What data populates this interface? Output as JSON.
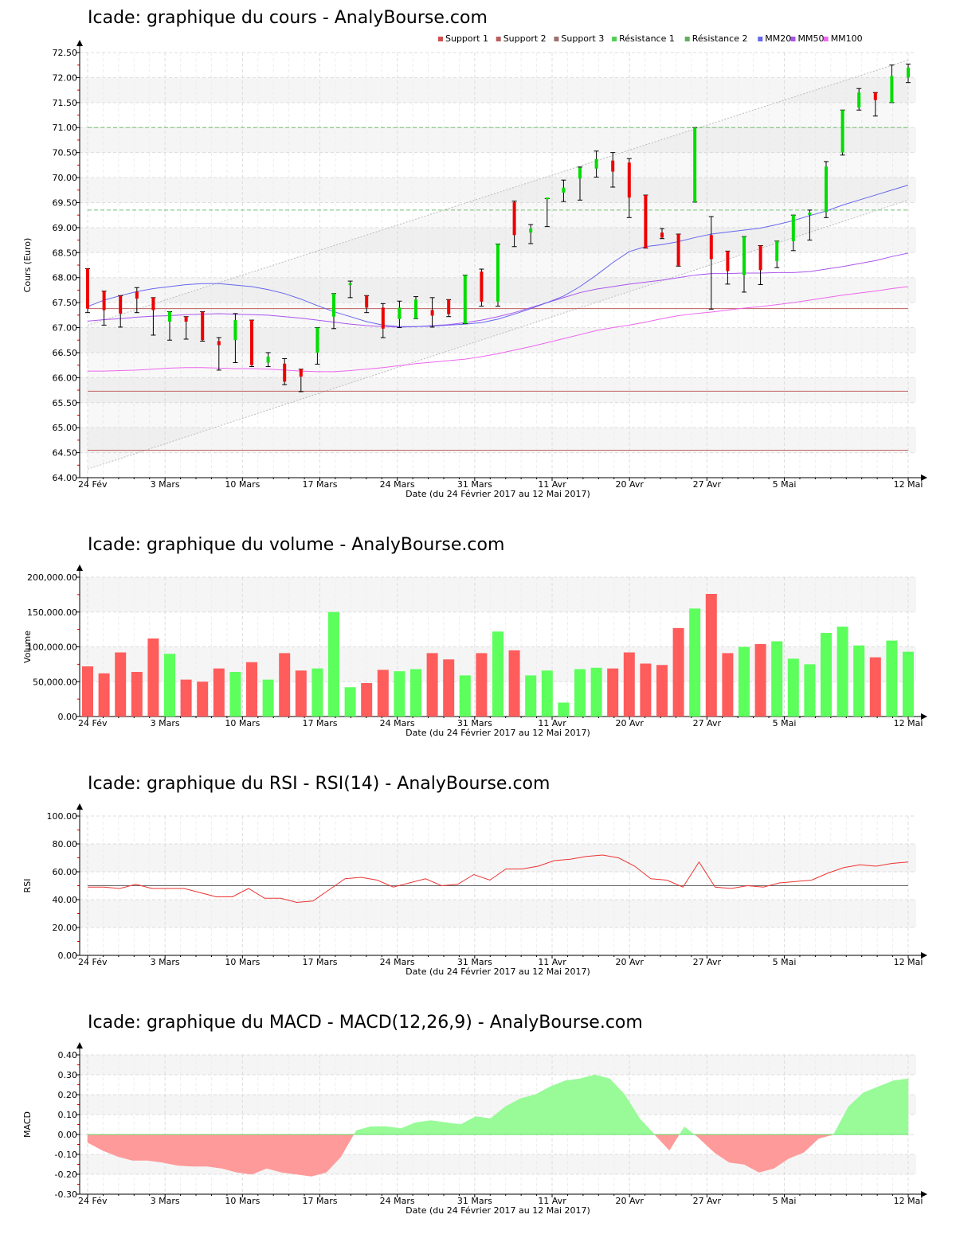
{
  "colors": {
    "up": "#00dd00",
    "down": "#ee0000",
    "wick": "#000000",
    "vol_up": "#5cff5c",
    "vol_down": "#ff5c5c",
    "support": "#c06060",
    "resistance": "#70c070",
    "mm20": "#6666ee",
    "mm50": "#aa55ee",
    "mm100": "#ee66ee",
    "rsi": "#ee3333",
    "macd_pos": "#98fb98",
    "macd_neg": "#ff9a9a",
    "band": "#f5f5f5",
    "grid": "#dddddd",
    "trend": "#bbbbbb"
  },
  "dates": [
    "24 Fév",
    "3 Mars",
    "10 Mars",
    "17 Mars",
    "24 Mars",
    "31 Mars",
    "11 Avr",
    "20 Avr",
    "27 Avr",
    "5 Mai",
    "12 Mai"
  ],
  "date_tick_index": [
    0,
    5,
    10,
    15,
    20,
    25,
    30,
    35,
    40,
    45,
    53
  ],
  "xlabel": "Date (du 24 Février 2017 au 12 Mai 2017)",
  "price_chart": {
    "title": "Icade: graphique du cours - AnalyBourse.com",
    "ylabel": "Cours (Euro)",
    "yticks": [
      "64.00",
      "64.50",
      "65.00",
      "65.50",
      "66.00",
      "66.50",
      "67.00",
      "67.50",
      "68.00",
      "68.50",
      "69.00",
      "69.50",
      "70.00",
      "70.50",
      "71.00",
      "71.50",
      "72.00",
      "72.50"
    ],
    "legend": [
      {
        "label": "Support 1",
        "color": "#d05050"
      },
      {
        "label": "Support 2",
        "color": "#b86060"
      },
      {
        "label": "Support 3",
        "color": "#a07070"
      },
      {
        "label": "Résistance 1",
        "color": "#50d050"
      },
      {
        "label": "Résistance 2",
        "color": "#60b060"
      },
      {
        "label": "MM20",
        "color": "#6666ee"
      },
      {
        "label": "MM50",
        "color": "#aa55ee"
      },
      {
        "label": "MM100",
        "color": "#ee66ee"
      }
    ]
  },
  "volume_chart": {
    "title": "Icade: graphique du volume - AnalyBourse.com",
    "ylabel": "Volume",
    "yticks": [
      "0.00",
      "50,000.00",
      "100,000.00",
      "150,000.00",
      "200,000.00"
    ]
  },
  "rsi_chart": {
    "title": "Icade: graphique du RSI - RSI(14) - AnalyBourse.com",
    "ylabel": "RSI",
    "yticks": [
      "0.00",
      "20.00",
      "40.00",
      "60.00",
      "80.00",
      "100.00"
    ]
  },
  "macd_chart": {
    "title": "Icade: graphique du MACD - MACD(12,26,9) - AnalyBourse.com",
    "ylabel": "MACD",
    "yticks": [
      "-0.30",
      "-0.20",
      "-0.10",
      "0.00",
      "0.10",
      "0.20",
      "0.30",
      "0.40"
    ]
  },
  "chart_data": [
    {
      "type": "candlestick",
      "title": "Icade: graphique du cours - AnalyBourse.com",
      "xlabel": "Date (du 24 Février 2017 au 12 Mai 2017)",
      "ylabel": "Cours (Euro)",
      "ylim": [
        64.0,
        72.5
      ],
      "support_levels": [
        67.38,
        65.73,
        64.55
      ],
      "resistance_levels": [
        71.0,
        69.35
      ],
      "candles": [
        {
          "o": 68.18,
          "h": 68.18,
          "l": 67.3,
          "c": 67.38
        },
        {
          "o": 67.73,
          "h": 67.73,
          "l": 67.05,
          "c": 67.35
        },
        {
          "o": 67.64,
          "h": 67.64,
          "l": 67.01,
          "c": 67.28
        },
        {
          "o": 67.72,
          "h": 67.8,
          "l": 67.3,
          "c": 67.58
        },
        {
          "o": 67.6,
          "h": 67.6,
          "l": 66.85,
          "c": 67.35
        },
        {
          "o": 67.12,
          "h": 67.32,
          "l": 66.75,
          "c": 67.32
        },
        {
          "o": 67.22,
          "h": 67.22,
          "l": 66.77,
          "c": 67.12
        },
        {
          "o": 67.32,
          "h": 67.32,
          "l": 66.73,
          "c": 66.75
        },
        {
          "o": 66.73,
          "h": 66.8,
          "l": 66.15,
          "c": 66.65
        },
        {
          "o": 66.75,
          "h": 67.28,
          "l": 66.3,
          "c": 67.15
        },
        {
          "o": 67.15,
          "h": 67.15,
          "l": 66.22,
          "c": 66.25
        },
        {
          "o": 66.3,
          "h": 66.5,
          "l": 66.22,
          "c": 66.42
        },
        {
          "o": 66.28,
          "h": 66.38,
          "l": 65.86,
          "c": 65.92
        },
        {
          "o": 66.17,
          "h": 66.17,
          "l": 65.72,
          "c": 66.02
        },
        {
          "o": 66.5,
          "h": 67.0,
          "l": 66.27,
          "c": 67.0
        },
        {
          "o": 67.22,
          "h": 67.68,
          "l": 66.98,
          "c": 67.68
        },
        {
          "o": 67.85,
          "h": 67.93,
          "l": 67.6,
          "c": 67.89
        },
        {
          "o": 67.64,
          "h": 67.64,
          "l": 67.3,
          "c": 67.4
        },
        {
          "o": 67.4,
          "h": 67.48,
          "l": 66.8,
          "c": 66.98
        },
        {
          "o": 67.17,
          "h": 67.53,
          "l": 67.0,
          "c": 67.4
        },
        {
          "o": 67.18,
          "h": 67.62,
          "l": 67.18,
          "c": 67.56
        },
        {
          "o": 67.35,
          "h": 67.6,
          "l": 67.01,
          "c": 67.24
        },
        {
          "o": 67.56,
          "h": 67.56,
          "l": 67.22,
          "c": 67.27
        },
        {
          "o": 67.08,
          "h": 68.05,
          "l": 67.08,
          "c": 68.05
        },
        {
          "o": 68.12,
          "h": 68.17,
          "l": 67.43,
          "c": 67.52
        },
        {
          "o": 67.52,
          "h": 68.67,
          "l": 67.43,
          "c": 68.67
        },
        {
          "o": 69.51,
          "h": 69.53,
          "l": 68.62,
          "c": 68.85
        },
        {
          "o": 68.9,
          "h": 69.06,
          "l": 68.68,
          "c": 68.98
        },
        {
          "o": 69.58,
          "h": 69.58,
          "l": 69.02,
          "c": 69.6
        },
        {
          "o": 69.7,
          "h": 69.95,
          "l": 69.52,
          "c": 69.8
        },
        {
          "o": 69.98,
          "h": 70.21,
          "l": 69.55,
          "c": 70.2
        },
        {
          "o": 70.18,
          "h": 70.53,
          "l": 70.01,
          "c": 70.37
        },
        {
          "o": 70.34,
          "h": 70.5,
          "l": 69.81,
          "c": 70.12
        },
        {
          "o": 70.3,
          "h": 70.38,
          "l": 69.2,
          "c": 69.6
        },
        {
          "o": 69.65,
          "h": 69.65,
          "l": 68.59,
          "c": 68.59
        },
        {
          "o": 68.9,
          "h": 68.98,
          "l": 68.78,
          "c": 68.8
        },
        {
          "o": 68.87,
          "h": 68.87,
          "l": 68.23,
          "c": 68.24
        },
        {
          "o": 69.51,
          "h": 71.0,
          "l": 69.51,
          "c": 71.0
        },
        {
          "o": 68.85,
          "h": 69.22,
          "l": 67.37,
          "c": 68.37
        },
        {
          "o": 68.53,
          "h": 68.53,
          "l": 67.87,
          "c": 68.13
        },
        {
          "o": 68.05,
          "h": 68.82,
          "l": 67.71,
          "c": 68.82
        },
        {
          "o": 68.64,
          "h": 68.64,
          "l": 67.86,
          "c": 68.15
        },
        {
          "o": 68.33,
          "h": 68.73,
          "l": 68.2,
          "c": 68.73
        },
        {
          "o": 68.73,
          "h": 69.25,
          "l": 68.54,
          "c": 69.25
        },
        {
          "o": 69.25,
          "h": 69.35,
          "l": 68.75,
          "c": 69.3
        },
        {
          "o": 69.31,
          "h": 70.32,
          "l": 69.2,
          "c": 70.22
        },
        {
          "o": 70.5,
          "h": 71.35,
          "l": 70.45,
          "c": 71.35
        },
        {
          "o": 71.4,
          "h": 71.78,
          "l": 71.35,
          "c": 71.7
        },
        {
          "o": 71.7,
          "h": 71.7,
          "l": 71.23,
          "c": 71.55
        },
        {
          "o": 71.5,
          "h": 72.25,
          "l": 71.5,
          "c": 72.03
        },
        {
          "o": 72.0,
          "h": 72.27,
          "l": 71.9,
          "c": 72.2
        }
      ],
      "mm20": [
        67.42,
        67.55,
        67.64,
        67.72,
        67.78,
        67.82,
        67.86,
        67.88,
        67.88,
        67.85,
        67.82,
        67.76,
        67.68,
        67.57,
        67.44,
        67.32,
        67.22,
        67.12,
        67.05,
        67.02,
        67.02,
        67.03,
        67.05,
        67.07,
        67.1,
        67.17,
        67.27,
        67.38,
        67.5,
        67.63,
        67.82,
        68.05,
        68.3,
        68.52,
        68.62,
        68.66,
        68.72,
        68.8,
        68.87,
        68.91,
        68.95,
        68.99,
        69.06,
        69.14,
        69.24,
        69.33,
        69.45,
        69.55,
        69.65,
        69.75,
        69.85
      ],
      "mm50": [
        67.13,
        67.16,
        67.18,
        67.21,
        67.23,
        67.24,
        67.26,
        67.27,
        67.28,
        67.27,
        67.26,
        67.25,
        67.22,
        67.19,
        67.15,
        67.11,
        67.07,
        67.04,
        67.02,
        67.01,
        67.02,
        67.04,
        67.06,
        67.1,
        67.15,
        67.22,
        67.3,
        67.4,
        67.5,
        67.6,
        67.7,
        67.77,
        67.82,
        67.87,
        67.91,
        67.95,
        68.0,
        68.05,
        68.08,
        68.08,
        68.09,
        68.09,
        68.1,
        68.1,
        68.12,
        68.17,
        68.22,
        68.28,
        68.34,
        68.42,
        68.49
      ],
      "mm100": [
        66.13,
        66.13,
        66.14,
        66.15,
        66.17,
        66.19,
        66.2,
        66.2,
        66.19,
        66.18,
        66.18,
        66.17,
        66.15,
        66.13,
        66.12,
        66.12,
        66.14,
        66.17,
        66.2,
        66.24,
        66.28,
        66.31,
        66.34,
        66.37,
        66.42,
        66.48,
        66.55,
        66.62,
        66.7,
        66.78,
        66.86,
        66.94,
        67.0,
        67.05,
        67.11,
        67.18,
        67.24,
        67.28,
        67.31,
        67.35,
        67.39,
        67.42,
        67.46,
        67.5,
        67.55,
        67.6,
        67.65,
        67.69,
        67.73,
        67.78,
        67.82
      ],
      "trend_upper": [
        [
          0,
          67.05
        ],
        [
          53,
          72.35
        ]
      ],
      "trend_lower": [
        [
          0,
          64.17
        ],
        [
          53,
          69.55
        ]
      ]
    },
    {
      "type": "bar",
      "title": "Icade: graphique du volume - AnalyBourse.com",
      "ylabel": "Volume",
      "ylim": [
        0,
        200000
      ],
      "values": [
        72000,
        62000,
        92000,
        64000,
        112000,
        90000,
        53000,
        50000,
        69000,
        64000,
        78000,
        53000,
        91000,
        66000,
        69000,
        150000,
        42000,
        48000,
        67000,
        65000,
        68000,
        91000,
        82000,
        59000,
        91000,
        122000,
        95000,
        59000,
        66000,
        20000,
        68000,
        70000,
        69000,
        92000,
        76000,
        74000,
        127000,
        155000,
        176000,
        91000,
        100000,
        104000,
        108000,
        83000,
        75000,
        120000,
        129000,
        102000,
        85000,
        109000,
        93000
      ],
      "up": [
        false,
        false,
        false,
        false,
        false,
        true,
        false,
        false,
        false,
        true,
        false,
        true,
        false,
        false,
        true,
        true,
        true,
        false,
        false,
        true,
        true,
        false,
        false,
        true,
        false,
        true,
        false,
        true,
        true,
        true,
        true,
        true,
        false,
        false,
        false,
        false,
        false,
        true,
        false,
        false,
        true,
        false,
        true,
        true,
        true,
        true,
        true,
        true,
        false,
        true,
        true
      ]
    },
    {
      "type": "line",
      "title": "Icade: graphique du RSI - RSI(14) - AnalyBourse.com",
      "ylabel": "RSI",
      "ylim": [
        0,
        100
      ],
      "reference_line": 50,
      "values": [
        49,
        49,
        48,
        51,
        48,
        48,
        48,
        45,
        42,
        42,
        48,
        41,
        41,
        38,
        39,
        47,
        55,
        56,
        54,
        49,
        52,
        55,
        50,
        51,
        58,
        54,
        62,
        62,
        64,
        68,
        69,
        71,
        72,
        70,
        64,
        55,
        54,
        49,
        67,
        49,
        48,
        50,
        49,
        52,
        53,
        54,
        59,
        63,
        65,
        64,
        66,
        67
      ]
    },
    {
      "type": "area",
      "title": "Icade: graphique du MACD - MACD(12,26,9) - AnalyBourse.com",
      "ylabel": "MACD",
      "ylim": [
        -0.3,
        0.4
      ],
      "values": [
        -0.04,
        -0.08,
        -0.11,
        -0.13,
        -0.13,
        -0.14,
        -0.155,
        -0.16,
        -0.16,
        -0.17,
        -0.19,
        -0.2,
        -0.17,
        -0.19,
        -0.2,
        -0.21,
        -0.19,
        -0.11,
        0.02,
        0.04,
        0.04,
        0.03,
        0.06,
        0.07,
        0.06,
        0.05,
        0.09,
        0.08,
        0.14,
        0.18,
        0.2,
        0.24,
        0.27,
        0.28,
        0.3,
        0.28,
        0.2,
        0.08,
        0.0,
        -0.08,
        0.04,
        -0.02,
        -0.09,
        -0.14,
        -0.15,
        -0.19,
        -0.17,
        -0.12,
        -0.09,
        -0.02,
        0.0,
        0.14,
        0.21,
        0.24,
        0.27,
        0.28
      ]
    }
  ]
}
